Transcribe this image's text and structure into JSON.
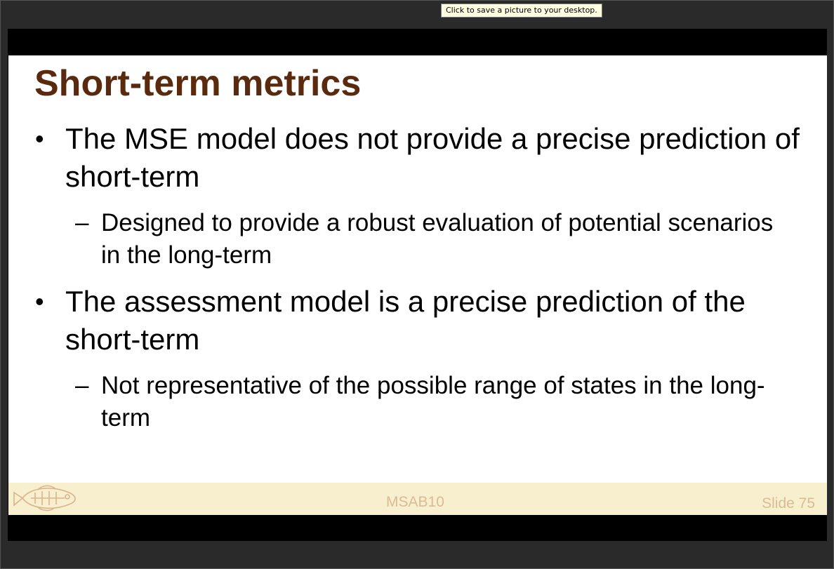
{
  "tooltip": {
    "text": "Click to save a picture to your desktop."
  },
  "slide": {
    "title": "Short-term metrics",
    "bullets": [
      {
        "text": "The MSE model does not provide a precise prediction of short-term",
        "subbullets": [
          "Designed to provide a robust evaluation of potential scenarios in the long-term"
        ]
      },
      {
        "text": "The assessment model is a precise prediction of the short-term",
        "subbullets": [
          "Not representative of the possible range of states in the long-term"
        ]
      }
    ],
    "bullet_marker": "•",
    "sub_marker": "–"
  },
  "footer": {
    "center": "MSAB10",
    "slide_number": "Slide 75",
    "logo_icon": "fish-icon",
    "text_color": "#d8bc96",
    "background": "#f8efcf"
  },
  "colors": {
    "title": "#5a2a0e",
    "frame": "#000000",
    "window": "#2a2a2a"
  }
}
